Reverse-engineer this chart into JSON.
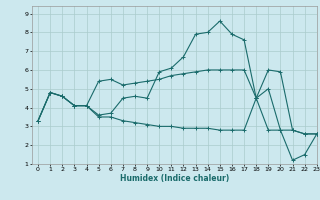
{
  "title": "",
  "xlabel": "Humidex (Indice chaleur)",
  "bg_color": "#cce8ee",
  "grid_color": "#aacccc",
  "line_color": "#1a6b6b",
  "xlim": [
    -0.5,
    23
  ],
  "ylim": [
    1,
    9.4
  ],
  "xticks": [
    0,
    1,
    2,
    3,
    4,
    5,
    6,
    7,
    8,
    9,
    10,
    11,
    12,
    13,
    14,
    15,
    16,
    17,
    18,
    19,
    20,
    21,
    22,
    23
  ],
  "yticks": [
    1,
    2,
    3,
    4,
    5,
    6,
    7,
    8,
    9
  ],
  "line1_x": [
    0,
    1,
    2,
    3,
    4,
    5,
    6,
    7,
    8,
    9,
    10,
    11,
    12,
    13,
    14,
    15,
    16,
    17,
    18,
    19,
    20,
    21,
    22,
    23
  ],
  "line1_y": [
    3.3,
    4.8,
    4.6,
    4.1,
    4.1,
    3.6,
    3.7,
    4.5,
    4.6,
    4.5,
    5.9,
    6.1,
    6.7,
    7.9,
    8.0,
    8.6,
    7.9,
    7.6,
    4.5,
    5.0,
    2.8,
    1.2,
    1.5,
    2.6
  ],
  "line2_x": [
    0,
    1,
    2,
    3,
    4,
    5,
    6,
    7,
    8,
    9,
    10,
    11,
    12,
    13,
    14,
    15,
    16,
    17,
    18,
    19,
    20,
    21,
    22,
    23
  ],
  "line2_y": [
    3.3,
    4.8,
    4.6,
    4.1,
    4.1,
    3.5,
    3.5,
    3.3,
    3.2,
    3.1,
    3.0,
    3.0,
    2.9,
    2.9,
    2.9,
    2.8,
    2.8,
    2.8,
    4.5,
    2.8,
    2.8,
    2.8,
    2.6,
    2.6
  ],
  "line3_x": [
    0,
    1,
    2,
    3,
    4,
    5,
    6,
    7,
    8,
    9,
    10,
    11,
    12,
    13,
    14,
    15,
    16,
    17,
    18,
    19,
    20,
    21,
    22,
    23
  ],
  "line3_y": [
    3.3,
    4.8,
    4.6,
    4.1,
    4.1,
    5.4,
    5.5,
    5.2,
    5.3,
    5.4,
    5.5,
    5.7,
    5.8,
    5.9,
    6.0,
    6.0,
    6.0,
    6.0,
    4.5,
    6.0,
    5.9,
    2.8,
    2.6,
    2.6
  ]
}
